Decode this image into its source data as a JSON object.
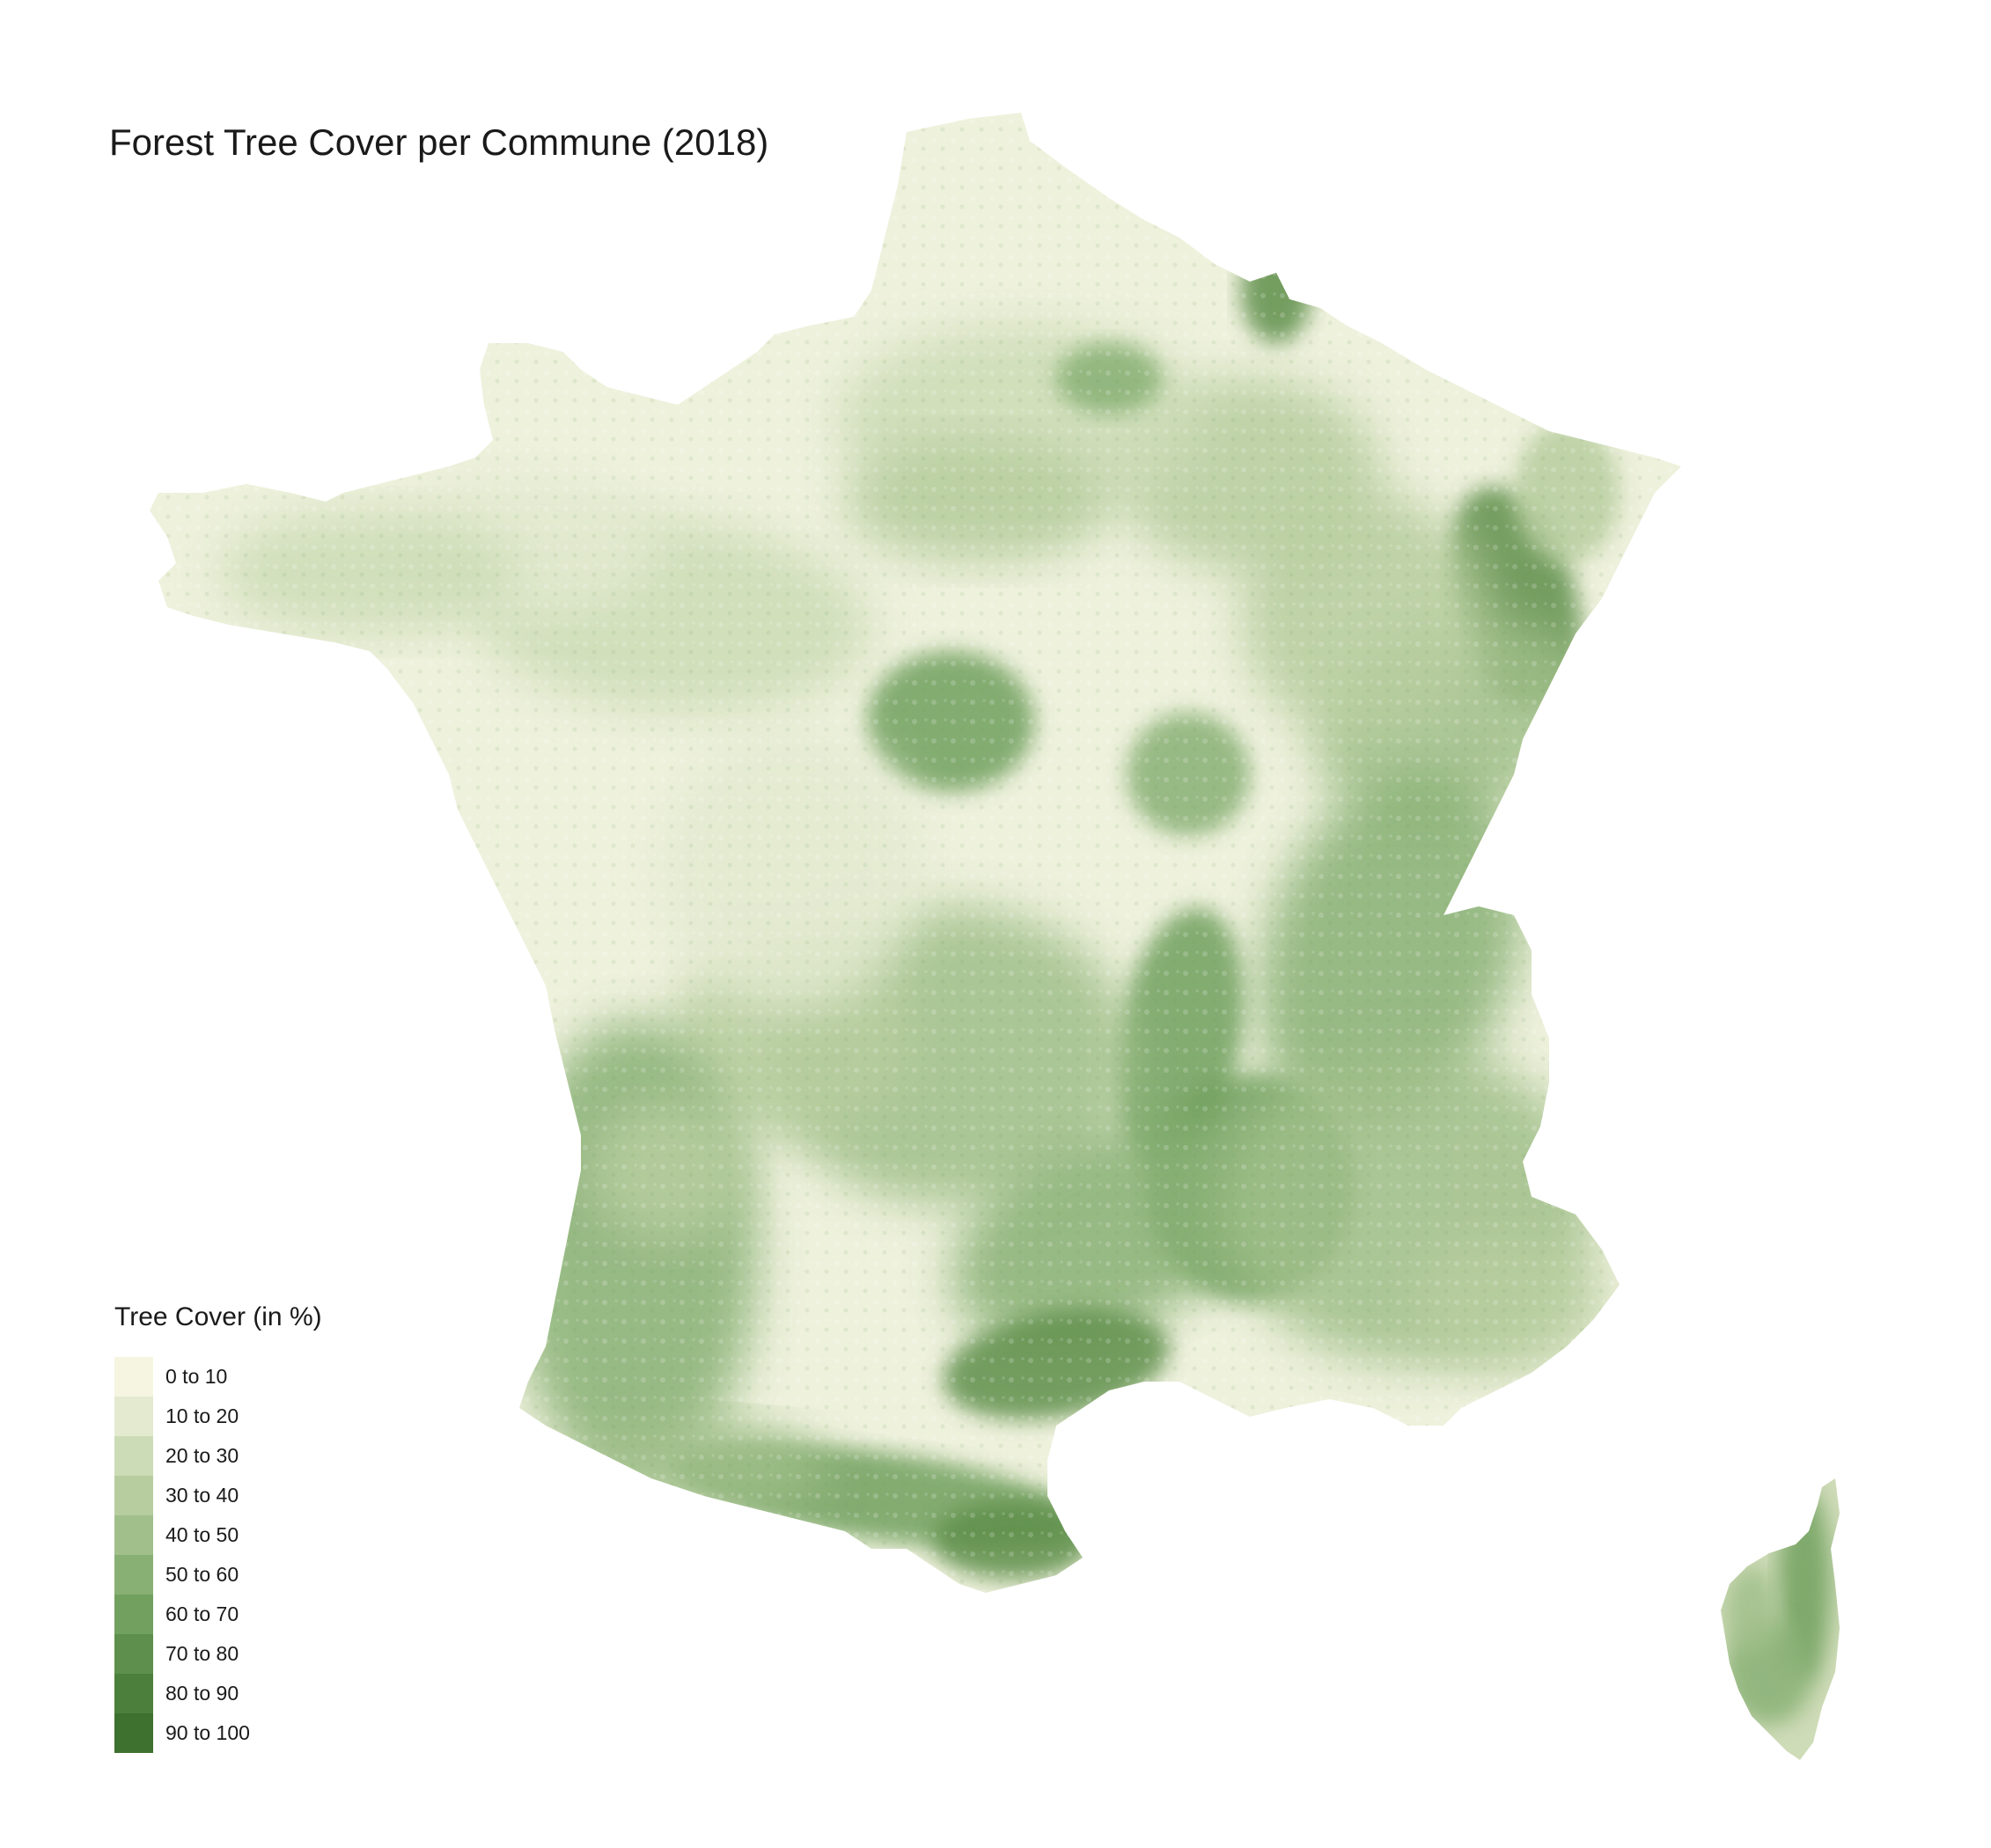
{
  "title": "Forest Tree Cover per Commune (2018)",
  "legend": {
    "title": "Tree Cover (in %)",
    "classes": [
      {
        "label": "0 to 10",
        "color": "#f5f5e1"
      },
      {
        "label": "10 to 20",
        "color": "#e3ead0"
      },
      {
        "label": "20 to 30",
        "color": "#ccdcb6"
      },
      {
        "label": "30 to 40",
        "color": "#b7cd9f"
      },
      {
        "label": "40 to 50",
        "color": "#a0bf8a"
      },
      {
        "label": "50 to 60",
        "color": "#88b074"
      },
      {
        "label": "60 to 70",
        "color": "#71a05f"
      },
      {
        "label": "70 to 80",
        "color": "#5e8f4c"
      },
      {
        "label": "80 to 90",
        "color": "#4d7f3c"
      },
      {
        "label": "90 to 100",
        "color": "#3e702f"
      }
    ]
  },
  "regions": [
    {
      "name": "mainland-france"
    },
    {
      "name": "corsica"
    }
  ]
}
